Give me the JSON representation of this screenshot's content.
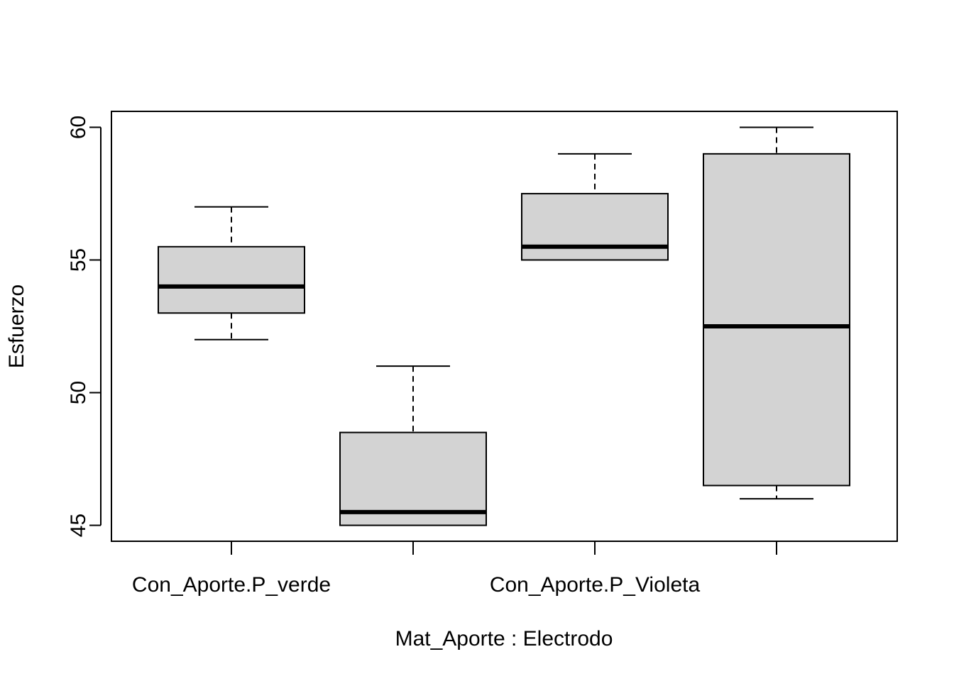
{
  "chart_data": {
    "type": "boxplot",
    "title": "",
    "xlabel": "Mat_Aporte : Electrodo",
    "ylabel": "Esfuerzo",
    "ylim": [
      44.4,
      60.6
    ],
    "yticks": [
      45,
      50,
      55,
      60
    ],
    "categories": [
      "Con_Aporte.P_verde",
      "",
      "Con_Aporte.P_Violeta",
      ""
    ],
    "visible_xtick_labels": [
      "Con_Aporte.P_verde",
      "Con_Aporte.P_Violeta"
    ],
    "boxes": [
      {
        "category": "Con_Aporte.P_verde",
        "min": 52,
        "q1": 53,
        "median": 54,
        "q3": 55.5,
        "max": 57
      },
      {
        "category": "",
        "min": 45,
        "q1": 45,
        "median": 45.5,
        "q3": 48.5,
        "max": 51
      },
      {
        "category": "Con_Aporte.P_Violeta",
        "min": 55,
        "q1": 55,
        "median": 55.5,
        "q3": 57.5,
        "max": 59
      },
      {
        "category": "",
        "min": 46,
        "q1": 46.5,
        "median": 52.5,
        "q3": 59,
        "max": 60
      }
    ],
    "grid": false,
    "box_fill": "#d3d3d3",
    "line_color": "#000000"
  }
}
